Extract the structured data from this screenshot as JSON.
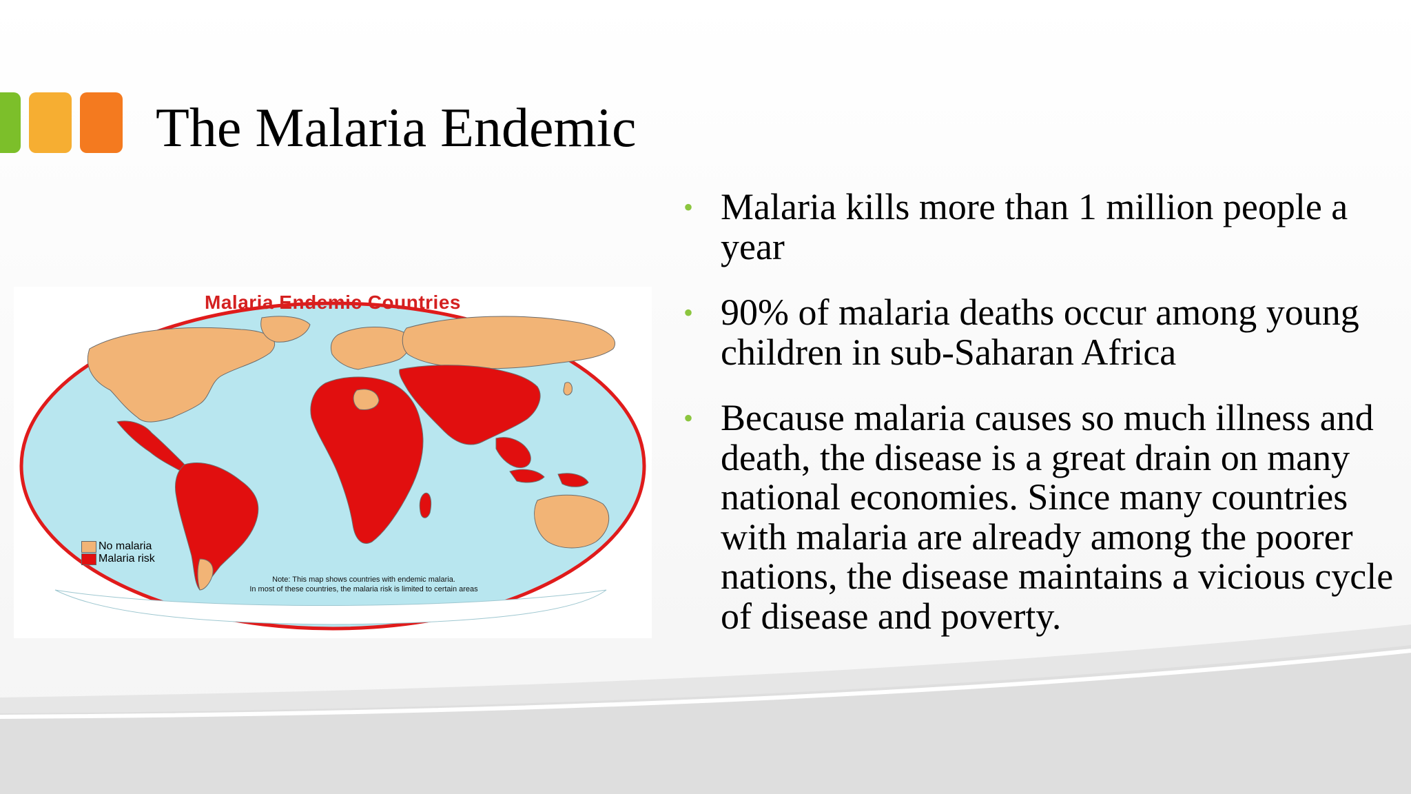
{
  "slide": {
    "title": "The Malaria Endemic",
    "accent_colors": [
      "#7cbf2a",
      "#f6ae32",
      "#f47a1f"
    ],
    "bullet_color": "#8cc63f",
    "bullets": [
      "Malaria kills more than 1 million people a year",
      "90% of malaria deaths occur among young children in sub-Saharan Africa",
      "Because malaria causes so much illness and death, the disease is a great drain on many national economies. Since many countries with malaria are already among the poorer nations, the disease maintains a vicious cycle of disease and poverty."
    ]
  },
  "map": {
    "title": "Malaria Endemic Countries",
    "legend": [
      {
        "label": "No malaria",
        "color": "#f2b476"
      },
      {
        "label": "Malaria risk",
        "color": "#e10f0f"
      }
    ],
    "note_line1": "Note: This map shows countries with endemic malaria.",
    "note_line2": "In most of these countries, the malaria risk is limited to certain areas",
    "ocean_color": "#b8e6ef",
    "border_color": "#e01b1b"
  }
}
